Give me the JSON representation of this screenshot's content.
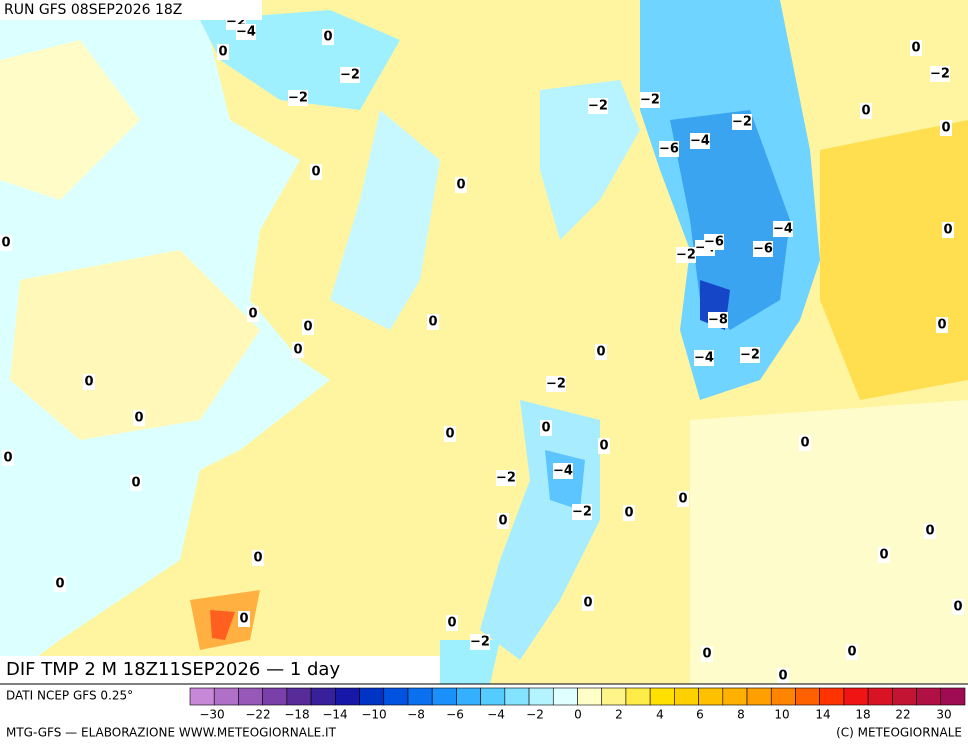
{
  "header": {
    "run": "RUN GFS 08SEP2026 18Z"
  },
  "map_title": "DIF TMP 2 M 18Z11SEP2026 — 1 day",
  "footer": {
    "source": "DATI NCEP GFS 0.25°",
    "credit": "MTG-GFS — ELABORAZIONE WWW.METEOGIORNALE.IT",
    "copyright": "(C) METEOGIORNALE"
  },
  "colorbar": {
    "colors": [
      "#c888d8",
      "#b070c8",
      "#9858b8",
      "#7840a8",
      "#582c98",
      "#38209a",
      "#1818a8",
      "#0034c4",
      "#0052e0",
      "#0a70f0",
      "#1a90fa",
      "#34b0ff",
      "#54ccff",
      "#84e4ff",
      "#b4f4ff",
      "#e0ffff",
      "#ffffc8",
      "#fff488",
      "#ffec48",
      "#ffe000",
      "#ffd000",
      "#ffc000",
      "#ffb000",
      "#ffa000",
      "#ff8400",
      "#ff6000",
      "#ff3400",
      "#f01414",
      "#d81424",
      "#c41434",
      "#b01044",
      "#a00c54"
    ],
    "labels": [
      "−30",
      "−22",
      "−18",
      "−14",
      "−10",
      "−8",
      "−6",
      "−4",
      "−2",
      "0",
      "2",
      "4",
      "6",
      "8",
      "10",
      "14",
      "18",
      "22",
      "30"
    ]
  },
  "contour_labels": [
    "−2",
    "−4",
    "0",
    "0",
    "−2",
    "−2",
    "0",
    "−2",
    "−2",
    "−2",
    "−2",
    "0",
    "0",
    "−4",
    "−6",
    "0",
    "0",
    "0",
    "−4",
    "0",
    "−2",
    "−4",
    "−6",
    "−6",
    "0",
    "0",
    "0",
    "−8",
    "0",
    "0",
    "0",
    "−4",
    "−2",
    "0",
    "−2",
    "0",
    "0",
    "0",
    "0",
    "0",
    "0",
    "−4",
    "−2",
    "0",
    "0",
    "−2",
    "0",
    "0",
    "0",
    "0",
    "0",
    "0",
    "0",
    "0",
    "0",
    "0",
    "−2",
    "0",
    "0",
    "0"
  ]
}
